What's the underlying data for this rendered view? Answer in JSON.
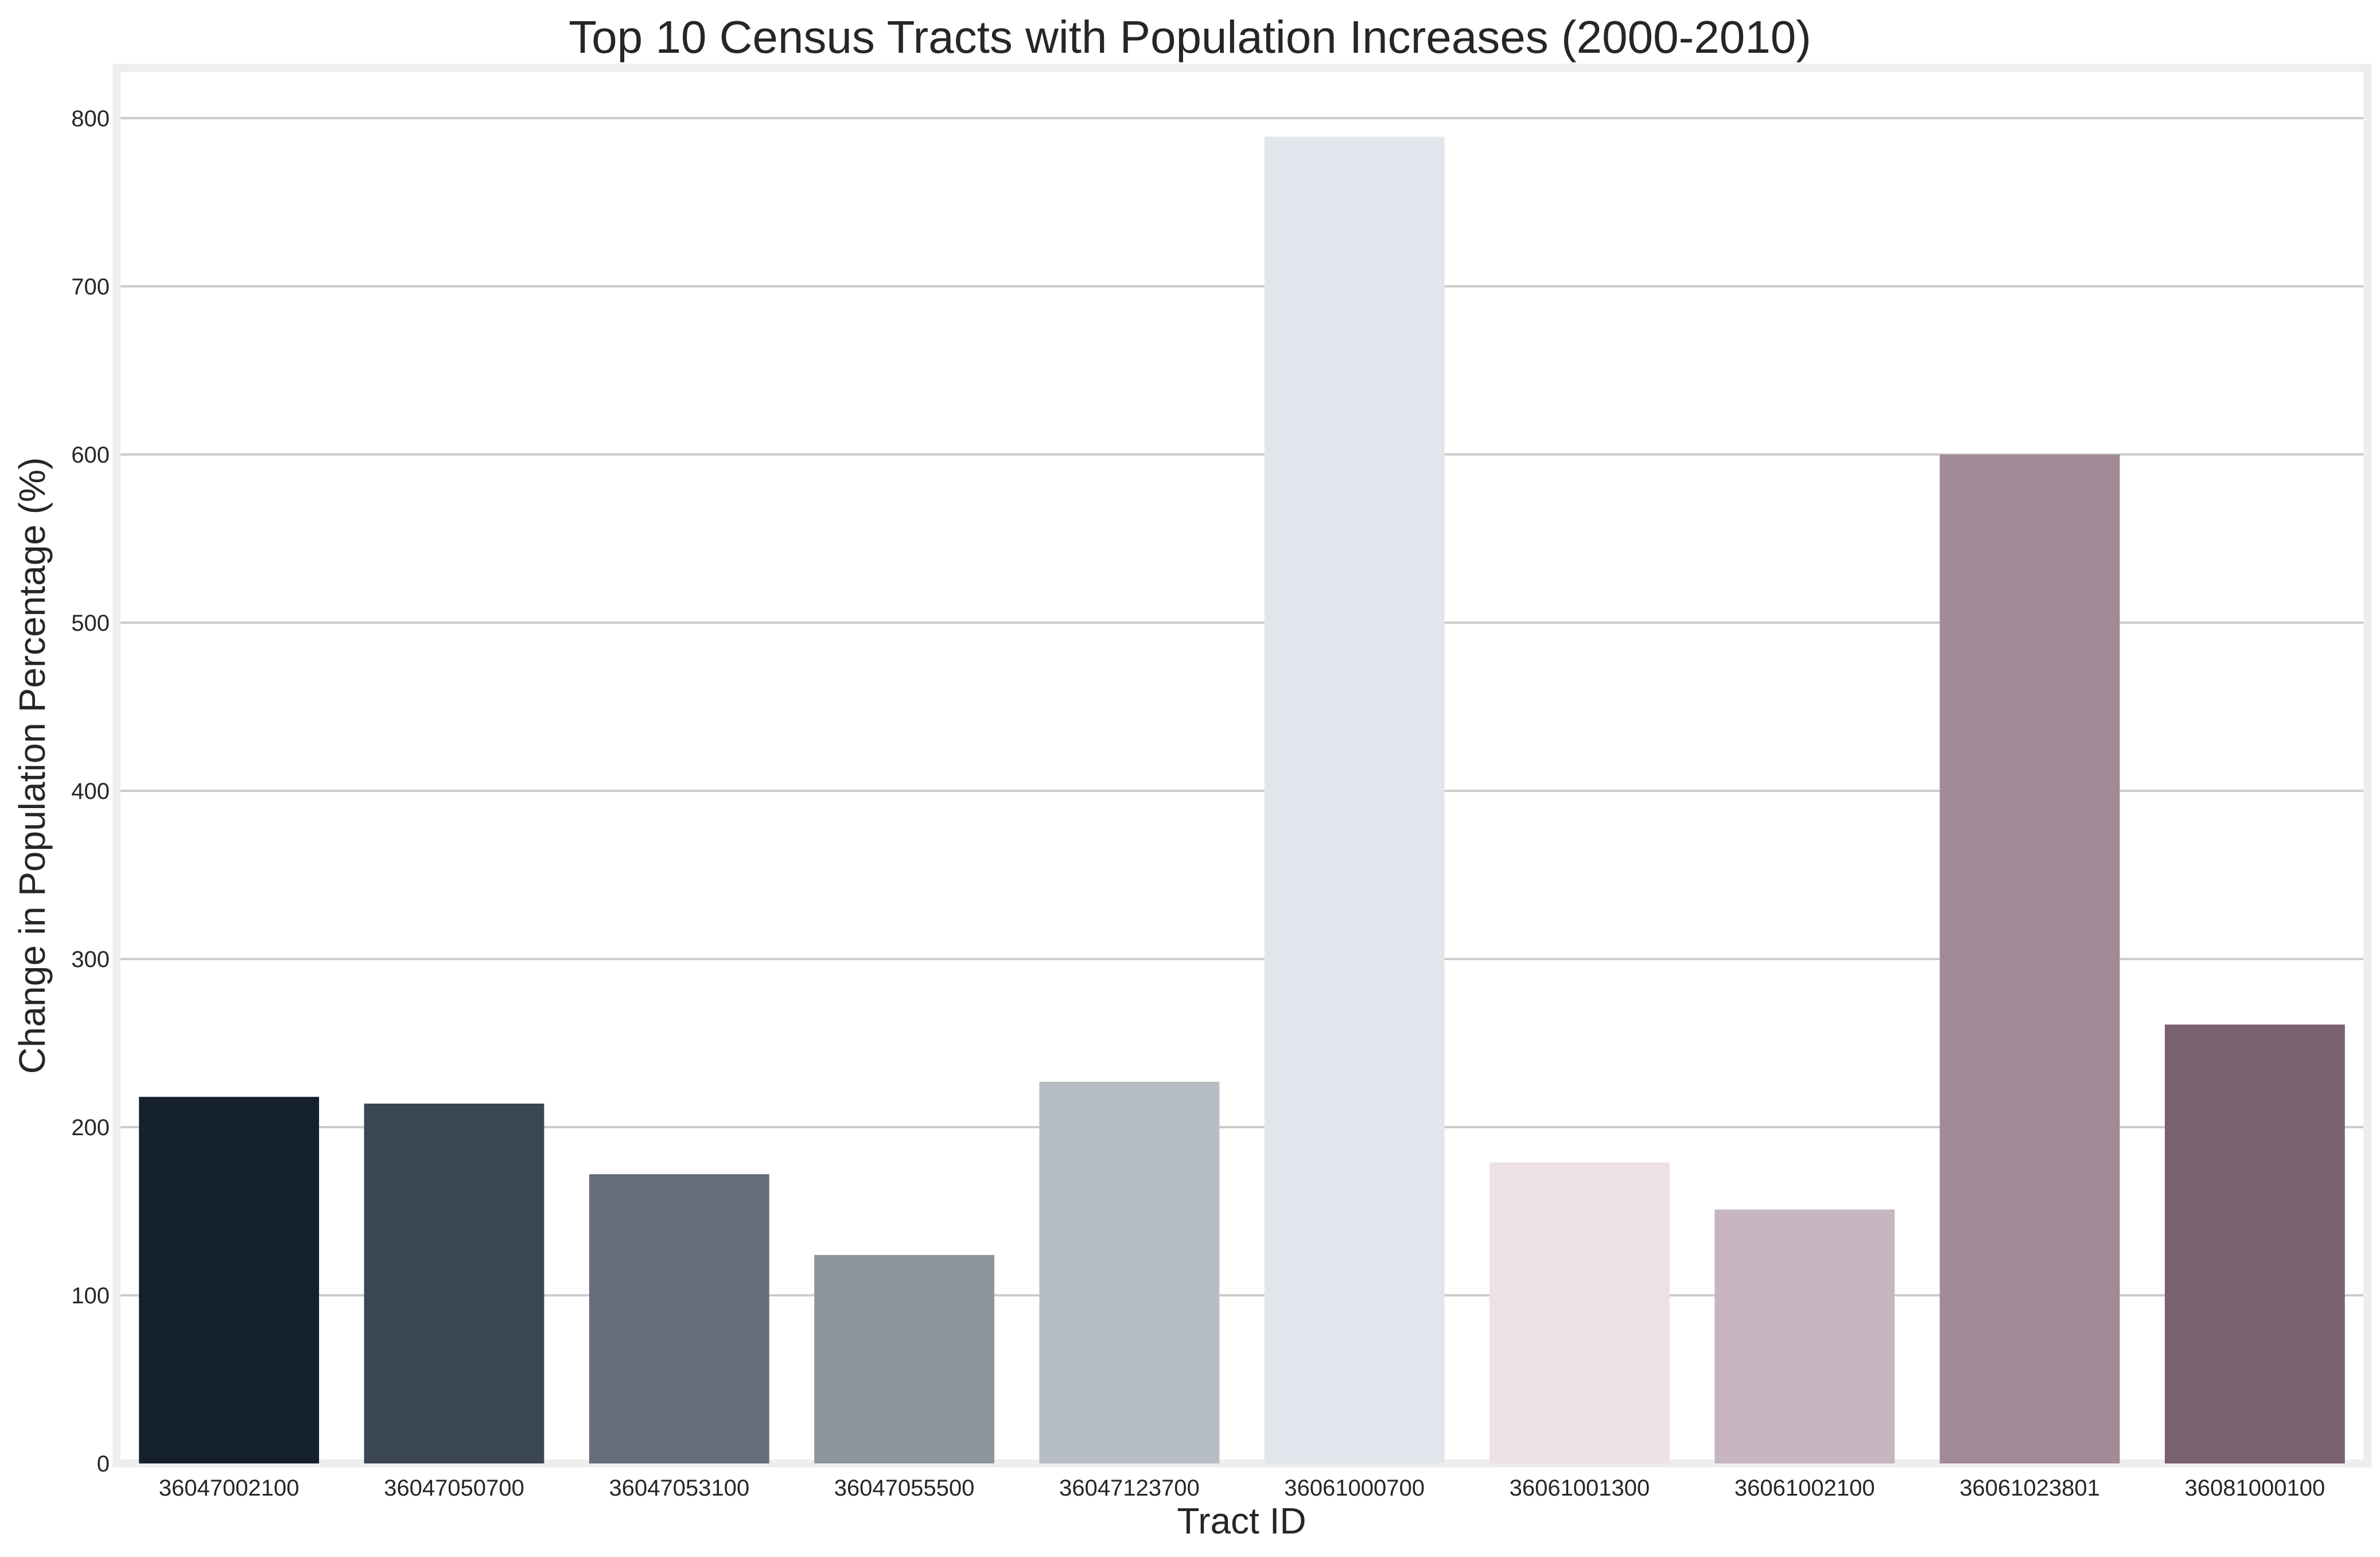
{
  "chart_data": {
    "type": "bar",
    "title": "Top 10 Census Tracts with Population Increases (2000-2010)",
    "xlabel": "Tract ID",
    "ylabel": "Change in Population Percentage (%)",
    "categories": [
      "36047002100",
      "36047050700",
      "36047053100",
      "36047055500",
      "36047123700",
      "36061000700",
      "36061001300",
      "36061002100",
      "36061023801",
      "36081000100"
    ],
    "values": [
      218,
      214,
      172,
      124,
      227,
      789,
      179,
      151,
      600,
      261
    ],
    "colors": [
      "#14202e",
      "#3b4654",
      "#646d79",
      "#8d959e",
      "#b7bdc4",
      "#e2e6ec",
      "#ede0e6",
      "#c7b6bf",
      "#a08b96",
      "#78626f"
    ],
    "ylim": [
      0,
      830
    ],
    "yticks": [
      0,
      100,
      200,
      300,
      400,
      500,
      600,
      700,
      800
    ],
    "grid": "horizontal",
    "legend": "none"
  }
}
